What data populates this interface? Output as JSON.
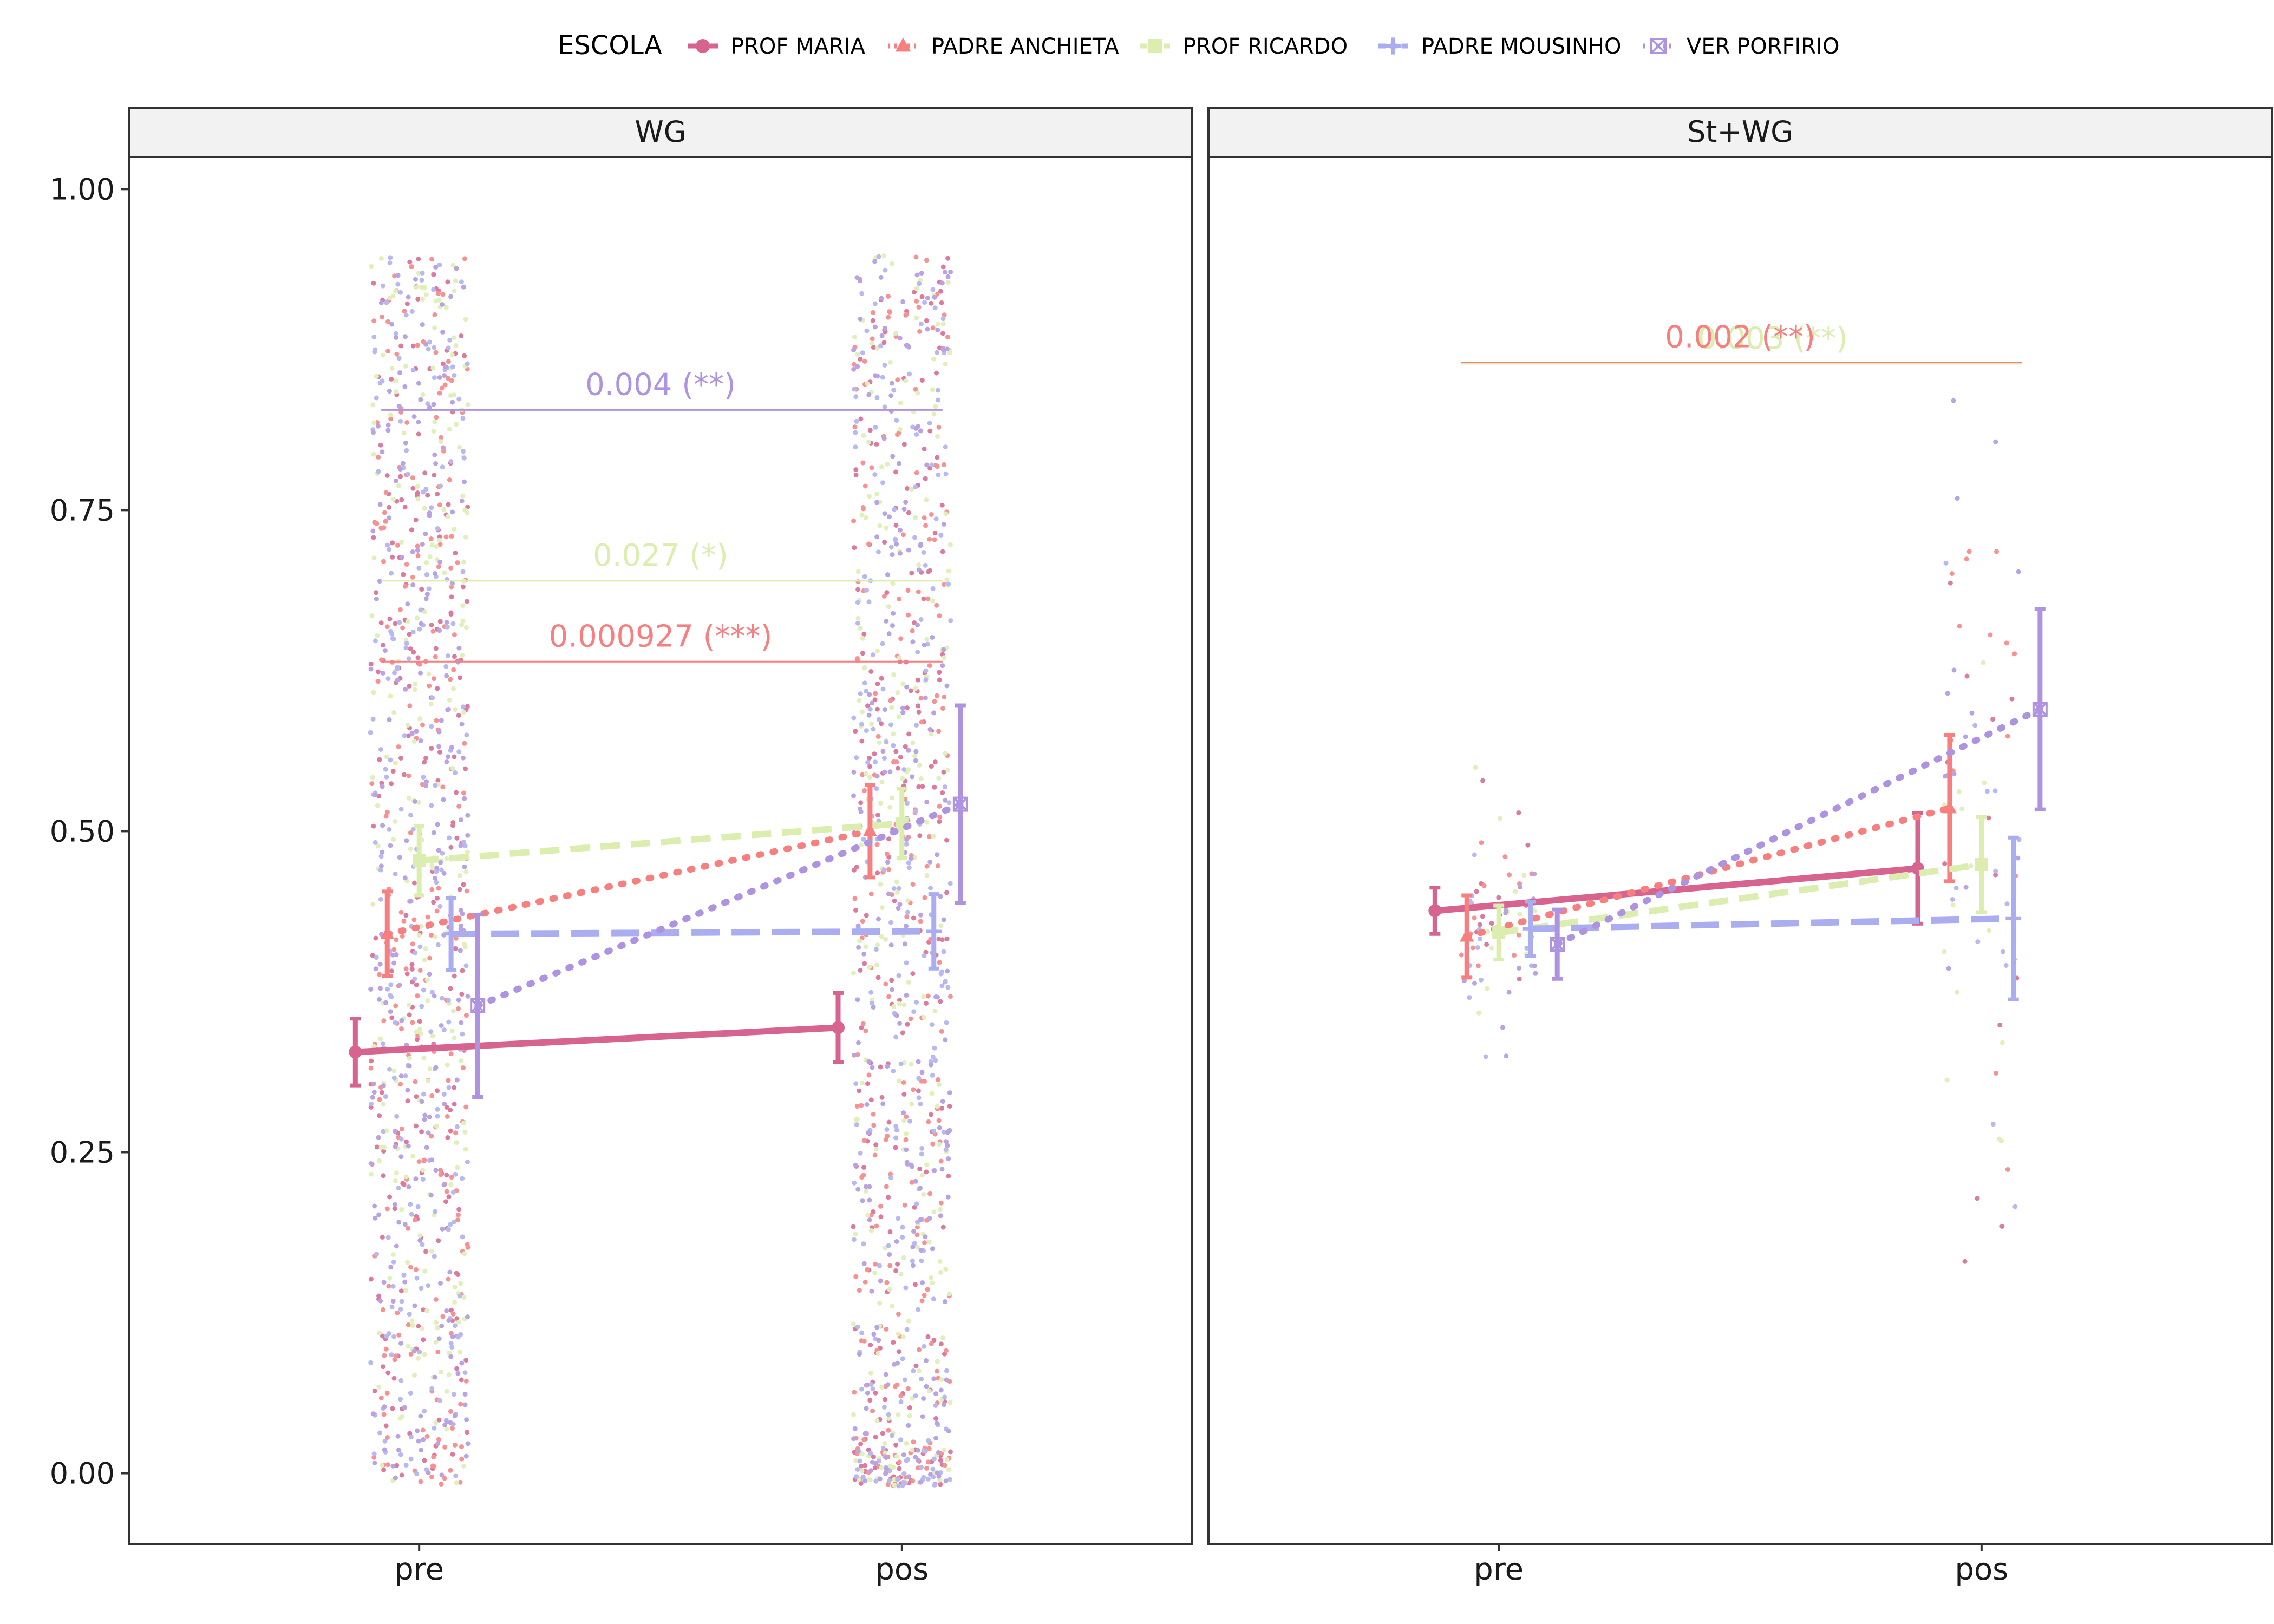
{
  "legend": {
    "title": "ESCOLA",
    "items": [
      {
        "name": "PROF MARIA",
        "color": "#d6648f",
        "shape": "circle",
        "dash": "solid"
      },
      {
        "name": "PADRE ANCHIETA",
        "color": "#f77f7f",
        "shape": "triangle",
        "dash": "dotted"
      },
      {
        "name": "PROF RICARDO",
        "color": "#dcedb0",
        "shape": "square",
        "dash": "dashed"
      },
      {
        "name": "PADRE MOUSINHO",
        "color": "#abadf1",
        "shape": "plus",
        "dash": "longdash"
      },
      {
        "name": "VER PORFIRIO",
        "color": "#ae94e0",
        "shape": "boxcross",
        "dash": "dotted"
      }
    ]
  },
  "chart_data": {
    "type": "line",
    "x_categories": [
      "pre",
      "pos"
    ],
    "y_ticks": [
      "0.00",
      "0.25",
      "0.50",
      "0.75",
      "1.00"
    ],
    "ylim": [
      -0.055,
      1.025
    ],
    "grid": false,
    "legend_position": "top",
    "panels": [
      {
        "title": "WG",
        "series": [
          {
            "name": "PROF MARIA",
            "mean": [
              0.328,
              0.347
            ],
            "ci": [
              [
                0.302,
                0.354
              ],
              [
                0.32,
                0.374
              ]
            ]
          },
          {
            "name": "PADRE ANCHIETA",
            "mean": [
              0.42,
              0.5
            ],
            "ci": [
              [
                0.387,
                0.453
              ],
              [
                0.464,
                0.536
              ]
            ]
          },
          {
            "name": "PROF RICARDO",
            "mean": [
              0.477,
              0.506
            ],
            "ci": [
              [
                0.45,
                0.504
              ],
              [
                0.479,
                0.533
              ]
            ]
          },
          {
            "name": "PADRE MOUSINHO",
            "mean": [
              0.42,
              0.422
            ],
            "ci": [
              [
                0.392,
                0.448
              ],
              [
                0.393,
                0.451
              ]
            ]
          },
          {
            "name": "VER PORFIRIO",
            "mean": [
              0.364,
              0.521
            ],
            "ci": [
              [
                0.293,
                0.435
              ],
              [
                0.444,
                0.598
              ]
            ]
          }
        ],
        "annotations": [
          {
            "label": "0.004 (**)",
            "series": "VER PORFIRIO",
            "y": 0.828
          },
          {
            "label": "0.027 (*)",
            "series": "PROF RICARDO",
            "y": 0.695
          },
          {
            "label": "0.000927 (***)",
            "series": "PADRE ANCHIETA",
            "y": 0.632
          }
        ]
      },
      {
        "title": "St+WG",
        "series": [
          {
            "name": "PROF MARIA",
            "mean": [
              0.438,
              0.471
            ],
            "ci": [
              [
                0.42,
                0.456
              ],
              [
                0.428,
                0.514
              ]
            ]
          },
          {
            "name": "PADRE ANCHIETA",
            "mean": [
              0.418,
              0.518
            ],
            "ci": [
              [
                0.386,
                0.45
              ],
              [
                0.461,
                0.575
              ]
            ]
          },
          {
            "name": "PROF RICARDO",
            "mean": [
              0.421,
              0.474
            ],
            "ci": [
              [
                0.4,
                0.442
              ],
              [
                0.437,
                0.511
              ]
            ]
          },
          {
            "name": "PADRE MOUSINHO",
            "mean": [
              0.424,
              0.432
            ],
            "ci": [
              [
                0.403,
                0.445
              ],
              [
                0.369,
                0.495
              ]
            ]
          },
          {
            "name": "VER PORFIRIO",
            "mean": [
              0.412,
              0.595
            ],
            "ci": [
              [
                0.385,
                0.439
              ],
              [
                0.517,
                0.673
              ]
            ]
          }
        ],
        "annotations": [
          {
            "label": "0.003 (**)",
            "series": "PROF RICARDO",
            "y": 0.864
          },
          {
            "label": "0.002 (**)",
            "series": "PADRE ANCHIETA",
            "y": 0.865
          }
        ]
      }
    ]
  }
}
